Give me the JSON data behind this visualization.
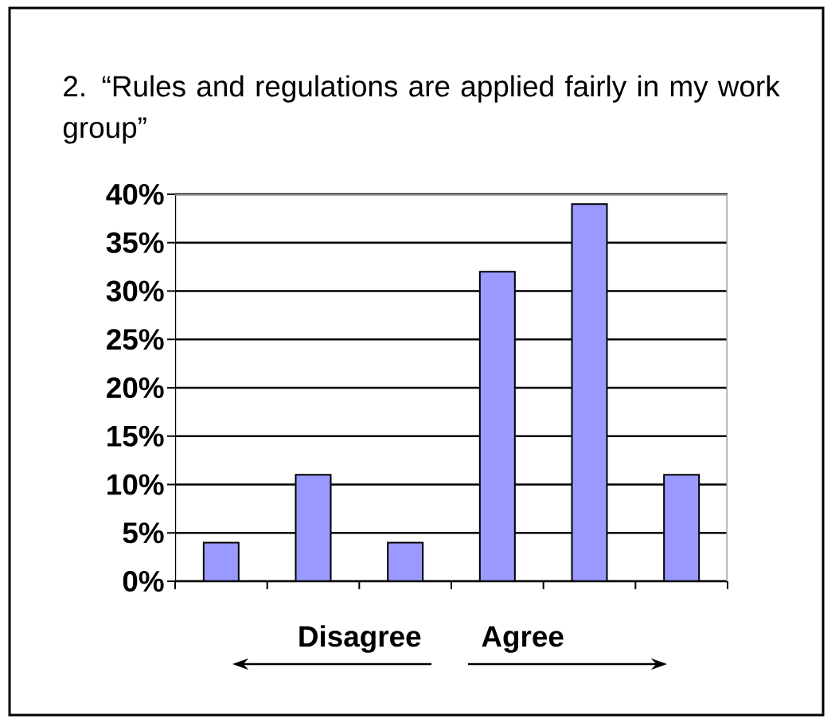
{
  "chart_data": {
    "type": "bar",
    "title": "2. “Rules and regulations are applied fairly in my work group”",
    "categories": [
      null,
      null,
      null,
      null,
      null,
      null
    ],
    "values": [
      4,
      11,
      4,
      32,
      39,
      11
    ],
    "color": "#9999ff",
    "ylim": [
      0,
      40
    ],
    "yticks": [
      {
        "value": 0,
        "label": "0%"
      },
      {
        "value": 5,
        "label": "5%"
      },
      {
        "value": 10,
        "label": "10%"
      },
      {
        "value": 15,
        "label": "15%"
      },
      {
        "value": 20,
        "label": "20%"
      },
      {
        "value": 25,
        "label": "25%"
      },
      {
        "value": 30,
        "label": "30%"
      },
      {
        "value": 35,
        "label": "35%"
      },
      {
        "value": 40,
        "label": "40%"
      }
    ],
    "grid": "y",
    "tick_labels": "y",
    "annotations": [
      "Disagree",
      "Agree"
    ]
  }
}
